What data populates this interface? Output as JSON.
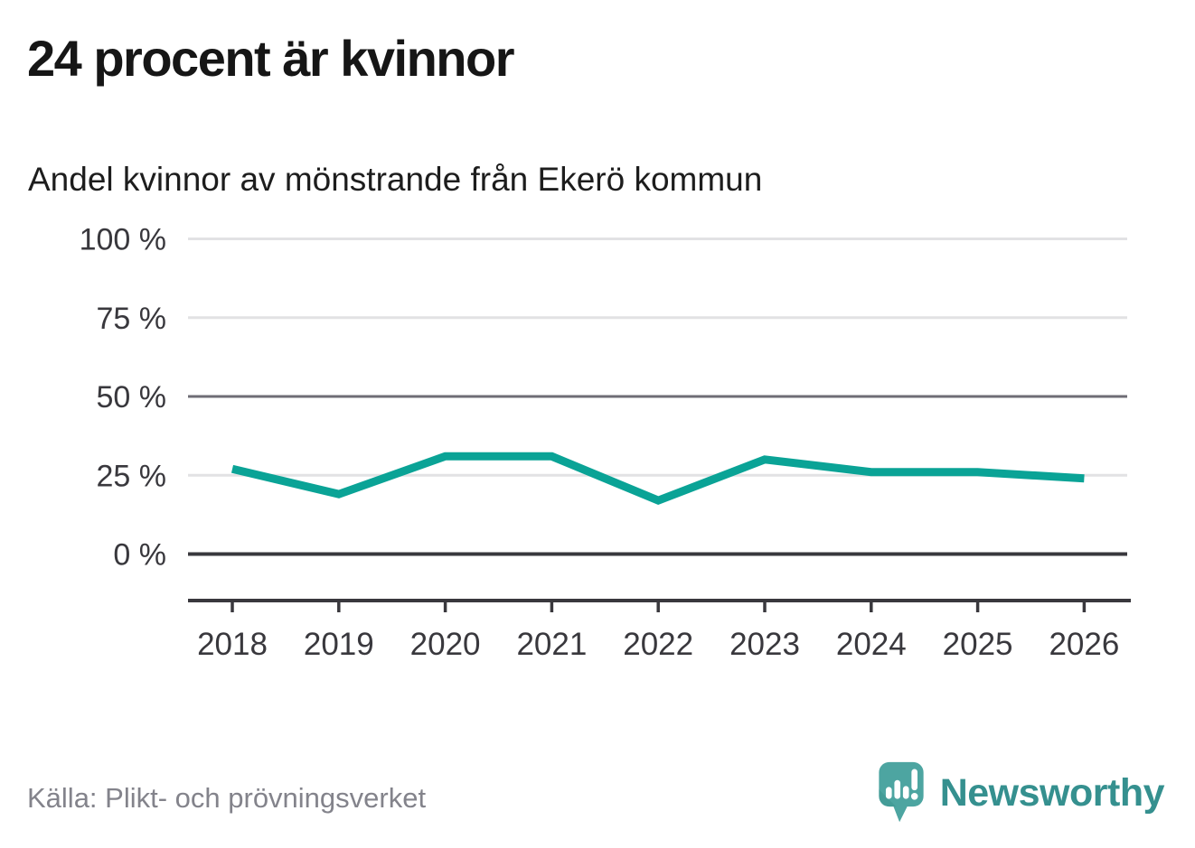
{
  "header": {
    "title": "24 procent är kvinnor"
  },
  "chart_data": {
    "type": "line",
    "title": "Andel kvinnor av mönstrande från Ekerö kommun",
    "x": [
      2018,
      2019,
      2020,
      2021,
      2022,
      2023,
      2024,
      2025,
      2026
    ],
    "series": [
      {
        "name": "Andel kvinnor av mönstrande",
        "values": [
          27,
          19,
          31,
          31,
          17,
          30,
          26,
          26,
          24
        ]
      }
    ],
    "xlabel": "",
    "ylabel": "",
    "ylim": [
      0,
      100
    ],
    "yticks": [
      0,
      25,
      50,
      75,
      100
    ],
    "ytick_suffix": " %",
    "grid": true,
    "strong_gridline_at": 50,
    "legend_position": "none",
    "line_color": "#0aa396"
  },
  "footer": {
    "source": "Källa: Plikt- och prövningsverket",
    "brand": "Newsworthy"
  },
  "colors": {
    "accent_teal": "#0aa396",
    "logo_teal": "#4da5a1",
    "wordmark_teal": "#35908f",
    "grid_light": "#e2e2e4",
    "grid_strong": "#6e6d75",
    "axis_dark": "#39383d",
    "text_dark": "#161616",
    "text_muted": "#83838b"
  }
}
